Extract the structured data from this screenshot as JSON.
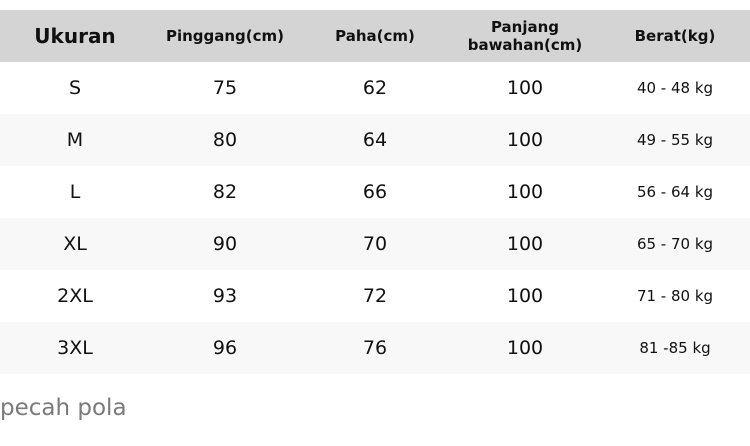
{
  "table": {
    "headers": [
      "Ukuran",
      "Pinggang(cm)",
      "Paha(cm)",
      "Panjang bawahan(cm)",
      "Berat(kg)"
    ],
    "rows": [
      [
        "S",
        "75",
        "62",
        "100",
        "40 - 48 kg"
      ],
      [
        "M",
        "80",
        "64",
        "100",
        "49 - 55 kg"
      ],
      [
        "L",
        "82",
        "66",
        "100",
        "56 - 64 kg"
      ],
      [
        "XL",
        "90",
        "70",
        "100",
        "65 - 70 kg"
      ],
      [
        "2XL",
        "93",
        "72",
        "100",
        "71 - 80 kg"
      ],
      [
        "3XL",
        "96",
        "76",
        "100",
        "81 -85 kg"
      ]
    ]
  },
  "note": "pecah pola"
}
